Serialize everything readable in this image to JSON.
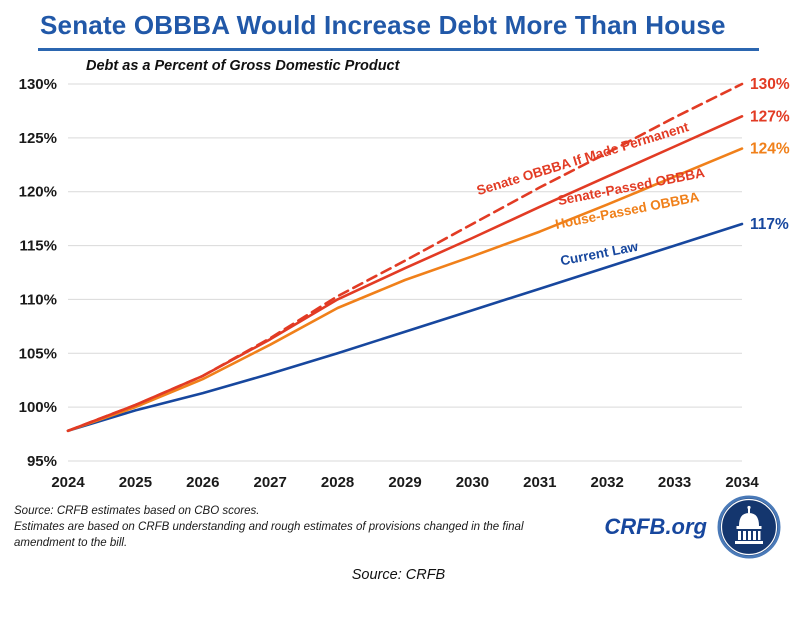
{
  "header": {
    "title": "Senate OBBBA Would Increase Debt More Than House"
  },
  "chart_data": {
    "type": "line",
    "title": "Senate OBBBA Would Increase Debt More Than House",
    "subtitle": "Debt as a Percent of Gross Domestic Product",
    "x": [
      2024,
      2025,
      2026,
      2027,
      2028,
      2029,
      2030,
      2031,
      2032,
      2033,
      2034
    ],
    "xlabel": "",
    "ylabel": "Debt as a Percent of Gross Domestic Product",
    "ylim": [
      95,
      130
    ],
    "yticks": [
      95,
      100,
      105,
      110,
      115,
      120,
      125,
      130
    ],
    "grid": true,
    "legend_position": "inline-labels-on-lines",
    "series": [
      {
        "name": "Senate OBBBA If Made Permanent",
        "color": "#e23b24",
        "dashed": true,
        "end_label": "130%",
        "values": [
          97.8,
          100.2,
          102.9,
          106.4,
          110.3,
          113.6,
          117.0,
          120.4,
          123.6,
          126.9,
          130.0
        ]
      },
      {
        "name": "Senate-Passed OBBBA",
        "color": "#e23b24",
        "dashed": false,
        "end_label": "127%",
        "values": [
          97.8,
          100.2,
          102.9,
          106.3,
          110.0,
          112.9,
          115.7,
          118.6,
          121.4,
          124.2,
          127.0
        ]
      },
      {
        "name": "House-Passed OBBBA",
        "color": "#f0801a",
        "dashed": false,
        "end_label": "124%",
        "values": [
          97.8,
          100.0,
          102.6,
          105.8,
          109.2,
          111.8,
          114.0,
          116.3,
          118.8,
          121.4,
          124.0
        ]
      },
      {
        "name": "Current Law",
        "color": "#17479e",
        "dashed": false,
        "end_label": "117%",
        "values": [
          97.8,
          99.7,
          101.3,
          103.1,
          105.0,
          107.0,
          109.0,
          111.0,
          113.0,
          115.0,
          117.0
        ]
      }
    ]
  },
  "footer": {
    "note_line1": "Source: CRFB estimates based on CBO scores.",
    "note_line2": "Estimates are based on CRFB understanding and rough estimates of provisions changed in the final amendment to the bill.",
    "brand": "CRFB.org",
    "logo_icon": "capitol-dome-icon"
  },
  "caption": "Source: CRFB",
  "colors": {
    "title_blue": "#2158a8",
    "red": "#e23b24",
    "orange": "#f0801a",
    "navy": "#17479e",
    "gridline": "#d9d9d9"
  }
}
